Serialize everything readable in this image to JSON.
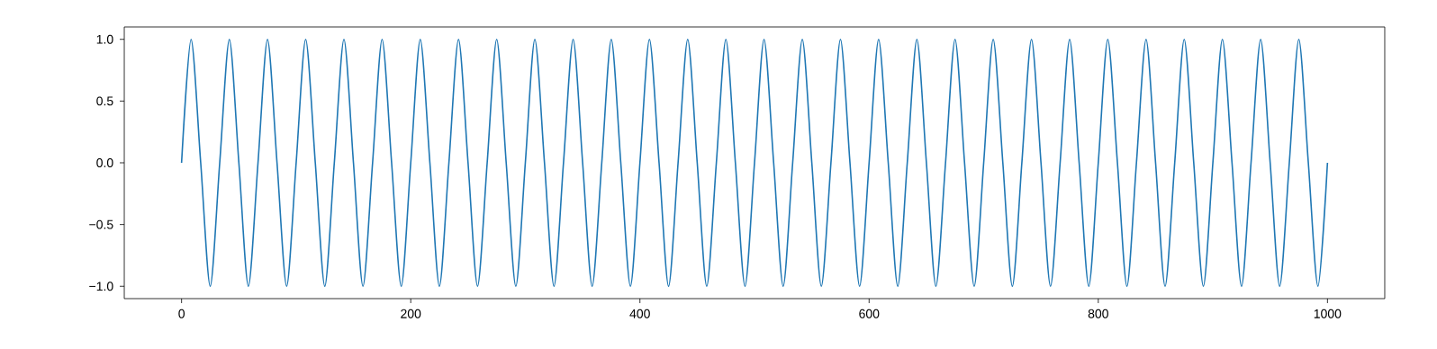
{
  "chart_data": {
    "type": "line",
    "color": "#1f77b4",
    "line_style": "solid",
    "marker": "none",
    "x": [
      0,
      8.3,
      16.7,
      25,
      33.3,
      41.7,
      50,
      58.3,
      66.7,
      75,
      83.3,
      91.7,
      100,
      108.3,
      116.7,
      125,
      133.3,
      141.7,
      150,
      158.3,
      166.7,
      175,
      183.3,
      191.7,
      200,
      208.3,
      216.7,
      225,
      233.3,
      241.7,
      250,
      258.3,
      266.7,
      275,
      283.3,
      291.7,
      300,
      308.3,
      316.7,
      325,
      333.3,
      341.7,
      350,
      358.3,
      366.7,
      375,
      383.3,
      391.7,
      400,
      408.3,
      416.7,
      425,
      433.3,
      441.7,
      450,
      458.3,
      466.7,
      475,
      483.3,
      491.7,
      500,
      508.3,
      516.7,
      525,
      533.3,
      541.7,
      550,
      558.3,
      566.7,
      575,
      583.3,
      591.7,
      600,
      608.3,
      616.7,
      625,
      633.3,
      641.7,
      650,
      658.3,
      666.7,
      675,
      683.3,
      691.7,
      700,
      708.3,
      716.7,
      725,
      733.3,
      741.7,
      750,
      758.3,
      766.7,
      775,
      783.3,
      791.7,
      800,
      808.3,
      816.7,
      825,
      833.3,
      841.7,
      850,
      858.3,
      866.7,
      875,
      883.3,
      891.7,
      900,
      908.3,
      916.7,
      925,
      933.3,
      941.7,
      950,
      958.3,
      966.7,
      975,
      983.3,
      991.7,
      1000
    ],
    "values": [
      0,
      1,
      0,
      -1,
      0,
      1,
      0,
      -1,
      0,
      1,
      0,
      -1,
      0,
      1,
      0,
      -1,
      0,
      1,
      0,
      -1,
      0,
      1,
      0,
      -1,
      0,
      1,
      0,
      -1,
      0,
      1,
      0,
      -1,
      0,
      1,
      0,
      -1,
      0,
      1,
      0,
      -1,
      0,
      1,
      0,
      -1,
      0,
      1,
      0,
      -1,
      0,
      1,
      0,
      -1,
      0,
      1,
      0,
      -1,
      0,
      1,
      0,
      -1,
      0,
      1,
      0,
      -1,
      0,
      1,
      0,
      -1,
      0,
      1,
      0,
      -1,
      0,
      1,
      0,
      -1,
      0,
      1,
      0,
      -1,
      0,
      1,
      0,
      -1,
      0,
      1,
      0,
      -1,
      0,
      1,
      0,
      -1,
      0,
      1,
      0,
      -1,
      0,
      1,
      0,
      -1,
      0,
      1,
      0,
      -1,
      0,
      1,
      0,
      -1,
      0,
      1,
      0,
      -1,
      0,
      1,
      0,
      -1,
      0,
      1,
      0,
      -1,
      0
    ],
    "xlim": [
      -50,
      1050
    ],
    "ylim": [
      -1.1,
      1.1
    ],
    "xticks": [
      0,
      200,
      400,
      600,
      800,
      1000
    ],
    "yticks": [
      {
        "value": -1.0,
        "label": "−1.0"
      },
      {
        "value": -0.5,
        "label": "−0.5"
      },
      {
        "value": 0.0,
        "label": "0.0"
      },
      {
        "value": 0.5,
        "label": "0.5"
      },
      {
        "value": 1.0,
        "label": "1.0"
      }
    ]
  }
}
